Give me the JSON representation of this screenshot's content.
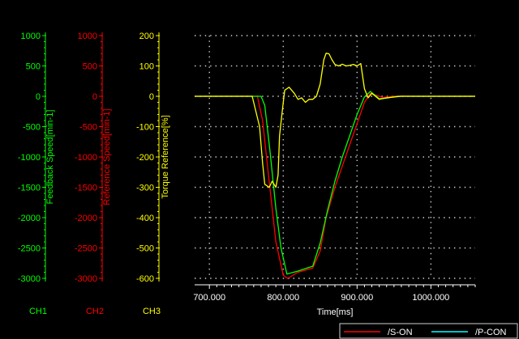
{
  "chart_data": {
    "type": "line",
    "x": {
      "label": "Time[ms]",
      "ticks": [
        "700.000",
        "800.000",
        "900.000",
        "1000.000"
      ],
      "tick_values": [
        700,
        800,
        900,
        1000
      ],
      "range": [
        680,
        1060
      ]
    },
    "axes": [
      {
        "id": "ch1",
        "label": "Feedback Speed[min-1]",
        "channel": "CH1",
        "color": "#00ff00",
        "ticks": [
          "1000",
          "500",
          "0",
          "-500",
          "-1000",
          "-1500",
          "-2000",
          "-2500",
          "-3000"
        ],
        "range": [
          -3000,
          1000
        ]
      },
      {
        "id": "ch2",
        "label": "Reference Speed[min-1]",
        "channel": "CH2",
        "color": "#ff0000",
        "ticks": [
          "1000",
          "500",
          "0",
          "-500",
          "-1000",
          "-1500",
          "-2000",
          "-2500",
          "-3000"
        ],
        "range": [
          -3000,
          1000
        ]
      },
      {
        "id": "ch3",
        "label": "Torque Reference[%]",
        "channel": "CH3",
        "color": "#ffff00",
        "ticks": [
          "200",
          "100",
          "0",
          "-100",
          "-200",
          "-300",
          "-400",
          "-500",
          "-600"
        ],
        "range": [
          -600,
          200
        ]
      }
    ],
    "series": [
      {
        "axis": "ch2",
        "color": "#ff0000",
        "x": [
          680,
          765,
          772,
          780,
          790,
          800,
          806,
          820,
          840,
          850,
          858,
          870,
          880,
          890,
          900,
          910,
          918,
          925,
          935,
          950,
          960,
          975,
          1060
        ],
        "y": [
          0,
          0,
          -400,
          -1300,
          -2400,
          -2950,
          -3000,
          -2900,
          -2830,
          -2550,
          -2000,
          -1500,
          -1150,
          -800,
          -450,
          -100,
          50,
          20,
          -20,
          0,
          5,
          0,
          0
        ]
      },
      {
        "axis": "ch1",
        "color": "#00ff00",
        "x": [
          680,
          770,
          775,
          782,
          790,
          797,
          805,
          820,
          840,
          850,
          860,
          870,
          880,
          890,
          900,
          910,
          918,
          930,
          940,
          955,
          980,
          1060
        ],
        "y": [
          0,
          0,
          -150,
          -900,
          -1850,
          -2500,
          -2930,
          -2880,
          -2800,
          -2420,
          -1880,
          -1400,
          -1000,
          -650,
          -300,
          -10,
          80,
          -40,
          -30,
          0,
          0,
          0
        ]
      },
      {
        "axis": "ch3",
        "color": "#ffff00",
        "x": [
          680,
          758,
          768,
          772,
          775,
          781,
          785,
          790,
          793,
          795,
          800,
          802,
          808,
          815,
          820,
          825,
          830,
          835,
          840,
          845,
          850,
          855,
          858,
          862,
          866,
          870,
          875,
          880,
          885,
          890,
          895,
          900,
          905,
          910,
          915,
          920,
          930,
          940,
          960,
          1060
        ],
        "y": [
          0,
          0,
          -100,
          -220,
          -290,
          -300,
          -280,
          -300,
          -260,
          -130,
          -20,
          20,
          30,
          10,
          -10,
          -5,
          -20,
          -10,
          -10,
          0,
          40,
          120,
          142,
          140,
          120,
          105,
          100,
          106,
          100,
          102,
          105,
          100,
          108,
          25,
          -5,
          10,
          -10,
          -5,
          0,
          0
        ]
      }
    ],
    "legend": [
      {
        "label": "/S-ON",
        "color": "#ff0000"
      },
      {
        "label": "/P-CON",
        "color": "#00ffff"
      }
    ],
    "grid": true
  }
}
